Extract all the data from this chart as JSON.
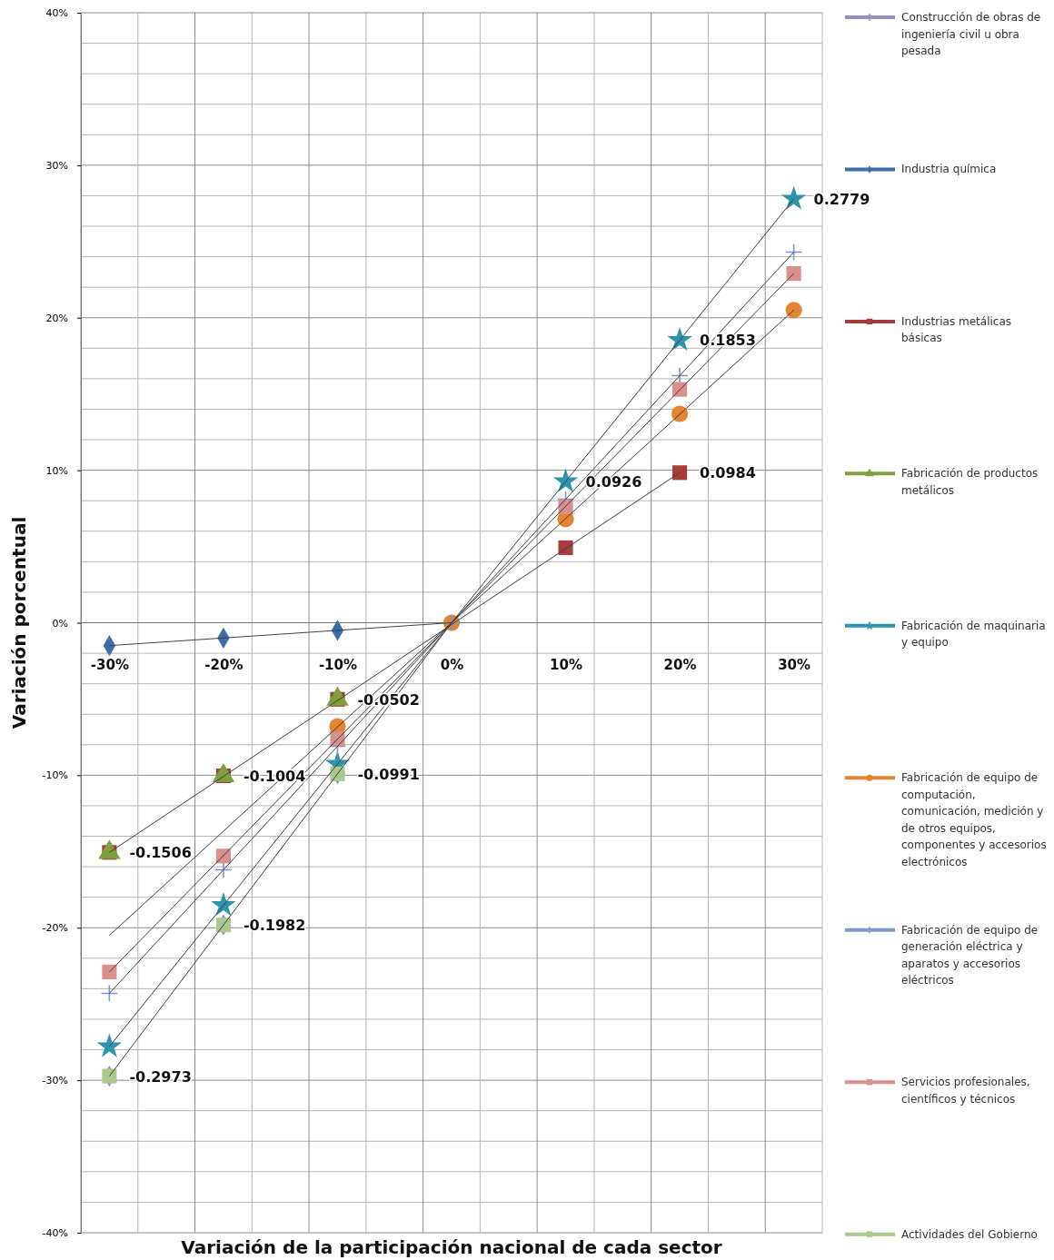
{
  "chart_data": {
    "type": "scatter",
    "xlabel": "Variación de la participación nacional de cada sector",
    "ylabel": "Variación porcentual",
    "categories": [
      "-30%",
      "-20%",
      "-10%",
      "0%",
      "10%",
      "20%",
      "30%"
    ],
    "ylim": [
      -0.4,
      0.4
    ],
    "yticks": [
      {
        "value": -0.4,
        "label": "-40%"
      },
      {
        "value": -0.3,
        "label": "-30%"
      },
      {
        "value": -0.2,
        "label": "-20%"
      },
      {
        "value": -0.1,
        "label": "-10%"
      },
      {
        "value": 0,
        "label": "0%"
      },
      {
        "value": 0.1,
        "label": "10%"
      },
      {
        "value": 0.2,
        "label": "20%"
      },
      {
        "value": 0.3,
        "label": "30%"
      },
      {
        "value": 0.4,
        "label": "40%"
      }
    ],
    "grid": true,
    "legend": "right",
    "series": [
      {
        "name": "Construcción de obras de ingeniería civil u obra pesada",
        "color": "#9b8bc2",
        "marker": "diamond",
        "values": [
          -0.2973,
          -0.1982,
          -0.0991,
          null,
          null,
          null,
          null
        ],
        "value_labels": [
          "-0.2973",
          "-0.1982",
          "-0.0991",
          null,
          null,
          null,
          null
        ]
      },
      {
        "name": "Industria química",
        "color": "#3e6ea8",
        "marker": "diamond",
        "values": [
          -0.015,
          -0.01,
          -0.005,
          null,
          null,
          null,
          null
        ]
      },
      {
        "name": "Industrias metálicas básicas",
        "color": "#a83c3a",
        "marker": "square",
        "values": [
          -0.1506,
          -0.1004,
          -0.0502,
          null,
          0.0492,
          0.0984,
          null
        ],
        "value_labels": [
          "-0.1506",
          "-0.1004",
          "-0.0502",
          null,
          null,
          "0.0984",
          null
        ]
      },
      {
        "name": "Fabricación de productos metálicos",
        "color": "#7f9f3e",
        "marker": "triangle",
        "values": [
          -0.1506,
          -0.1004,
          -0.0502,
          null,
          null,
          null,
          null
        ]
      },
      {
        "name": "Fabricación de maquinaria y equipo",
        "color": "#2f93ab",
        "marker": "star",
        "values": [
          -0.2779,
          -0.1853,
          -0.0926,
          null,
          0.0926,
          0.1853,
          0.2779
        ],
        "value_labels": [
          null,
          null,
          null,
          null,
          "0.0926",
          "0.1853",
          "0.2779"
        ]
      },
      {
        "name": "Fabricación de equipo de computación, comunicación, medición y de otros equipos, componentes y accesorios electrónicos",
        "color": "#e3842f",
        "marker": "circle",
        "values": [
          null,
          null,
          -0.068,
          0,
          0.068,
          0.137,
          0.205
        ]
      },
      {
        "name": "Fabricación de equipo de generación eléctrica y aparatos y accesorios eléctricos",
        "color": "#7c98c9",
        "marker": "cross",
        "values": [
          -0.243,
          -0.162,
          -0.081,
          0,
          0.081,
          0.162,
          0.243
        ]
      },
      {
        "name": "Servicios profesionales, científicos y técnicos",
        "color": "#d98f8d",
        "marker": "square",
        "values": [
          -0.229,
          -0.153,
          -0.076,
          null,
          0.076,
          0.153,
          0.229
        ]
      },
      {
        "name": "Actividades del Gobierno",
        "color": "#aac98c",
        "marker": "square",
        "values": [
          -0.2973,
          -0.1982,
          -0.0991,
          null,
          null,
          null,
          null
        ]
      },
      {
        "type": "line",
        "color": "#404040",
        "marker": "none",
        "x": [
          "-30%",
          "0%"
        ],
        "values": [
          -0.015,
          0
        ]
      },
      {
        "type": "line",
        "color": "#404040",
        "marker": "none",
        "x": [
          "-30%",
          "0%"
        ],
        "values": [
          -0.2973,
          0
        ]
      },
      {
        "type": "line",
        "color": "#404040",
        "marker": "none",
        "x": [
          "-30%",
          "20%"
        ],
        "values": [
          -0.1506,
          0.0984
        ]
      },
      {
        "type": "line",
        "color": "#404040",
        "marker": "none",
        "x": [
          "-30%",
          "30%"
        ],
        "values": [
          -0.2779,
          0.2779
        ]
      },
      {
        "type": "line",
        "color": "#404040",
        "marker": "none",
        "x": [
          "-30%",
          "30%"
        ],
        "values": [
          -0.243,
          0.243
        ]
      },
      {
        "type": "line",
        "color": "#404040",
        "marker": "none",
        "x": [
          "-30%",
          "30%"
        ],
        "values": [
          -0.229,
          0.229
        ]
      },
      {
        "type": "line",
        "color": "#404040",
        "marker": "none",
        "x": [
          "-30%",
          "30%"
        ],
        "values": [
          -0.205,
          0.205
        ]
      }
    ]
  }
}
